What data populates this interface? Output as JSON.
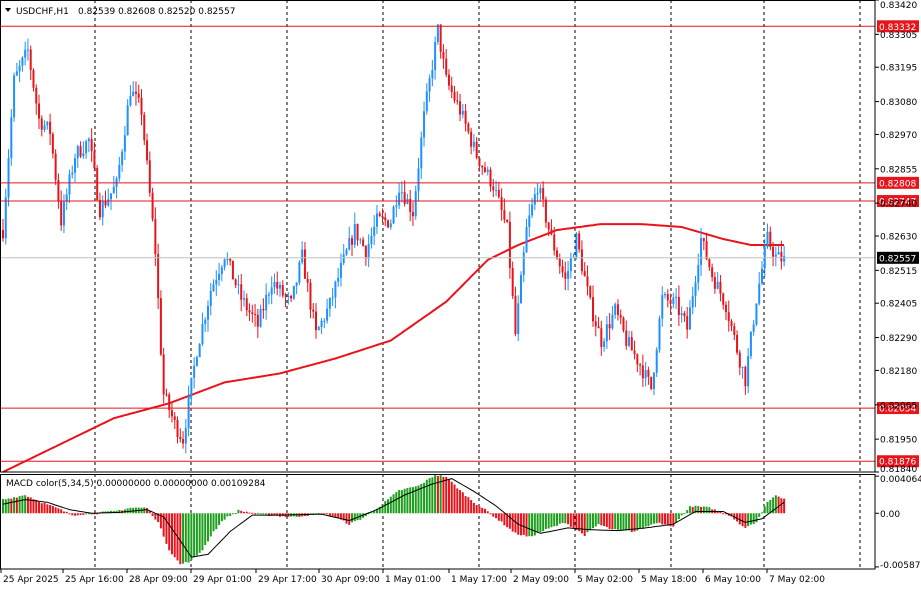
{
  "header": {
    "symbol": "USDCHF,H1",
    "ohlc": "0.82539 0.82608 0.82520 0.82557",
    "macd_label": "MACD color(5,34,5) 0.00000000 0.00000000 0.00109284"
  },
  "colors": {
    "bull": "#1E90FF",
    "bear": "#E8141B",
    "ma": "#E8141B",
    "level_line": "#E8141B",
    "grid": "#000000",
    "macd_up": "#1E9E1E",
    "macd_down": "#E8141B",
    "signal": "#000000",
    "price_tag": "#000000",
    "level_tag": "#E8141B"
  },
  "chart_data": {
    "type": "candlestick",
    "symbol": "USDCHF",
    "timeframe": "H1",
    "price_axis_ticks": [
      "0.83420",
      "0.83305",
      "0.83195",
      "0.83080",
      "0.82970",
      "0.82855",
      "0.82740",
      "0.82630",
      "0.82515",
      "0.82405",
      "0.82290",
      "0.82180",
      "0.82065",
      "0.81950",
      "0.81840"
    ],
    "price_range": [
      0.8184,
      0.8342
    ],
    "horizontal_levels": [
      {
        "label": "0.83332",
        "value": 0.83332
      },
      {
        "label": "0.82808",
        "value": 0.82808
      },
      {
        "label": "0.82747",
        "value": 0.82747
      },
      {
        "label": "0.82054",
        "value": 0.82054
      },
      {
        "label": "0.81876",
        "value": 0.81876
      }
    ],
    "current_price": {
      "label": "0.82557",
      "value": 0.82557
    },
    "time_labels": [
      "25 Apr 2025",
      "25 Apr 16:00",
      "28 Apr 09:00",
      "29 Apr 01:00",
      "29 Apr 17:00",
      "30 Apr 09:00",
      "1 May 01:00",
      "1 May 17:00",
      "2 May 09:00",
      "5 May 02:00",
      "5 May 18:00",
      "6 May 10:00",
      "7 May 02:00"
    ],
    "close_path": [
      [
        0,
        0.8265
      ],
      [
        4,
        0.8315
      ],
      [
        9,
        0.8325
      ],
      [
        13,
        0.8302
      ],
      [
        17,
        0.8298
      ],
      [
        21,
        0.8268
      ],
      [
        26,
        0.829
      ],
      [
        31,
        0.8295
      ],
      [
        35,
        0.8272
      ],
      [
        41,
        0.828
      ],
      [
        46,
        0.8312
      ],
      [
        50,
        0.8305
      ],
      [
        55,
        0.8258
      ],
      [
        57,
        0.8225
      ],
      [
        58,
        0.821
      ],
      [
        62,
        0.82
      ],
      [
        65,
        0.8195
      ],
      [
        70,
        0.8225
      ],
      [
        75,
        0.8245
      ],
      [
        80,
        0.8257
      ],
      [
        86,
        0.8242
      ],
      [
        92,
        0.8233
      ],
      [
        97,
        0.8248
      ],
      [
        104,
        0.824
      ],
      [
        108,
        0.8256
      ],
      [
        113,
        0.823
      ],
      [
        118,
        0.824
      ],
      [
        122,
        0.8252
      ],
      [
        127,
        0.8265
      ],
      [
        131,
        0.8258
      ],
      [
        135,
        0.8268
      ],
      [
        140,
        0.8268
      ],
      [
        143,
        0.828
      ],
      [
        148,
        0.8271
      ],
      [
        152,
        0.8303
      ],
      [
        157,
        0.8332
      ],
      [
        160,
        0.8315
      ],
      [
        165,
        0.8305
      ],
      [
        171,
        0.829
      ],
      [
        177,
        0.828
      ],
      [
        182,
        0.8265
      ],
      [
        185,
        0.823
      ],
      [
        189,
        0.8265
      ],
      [
        193,
        0.828
      ],
      [
        198,
        0.8262
      ],
      [
        203,
        0.8248
      ],
      [
        207,
        0.8262
      ],
      [
        212,
        0.824
      ],
      [
        216,
        0.8228
      ],
      [
        221,
        0.8238
      ],
      [
        225,
        0.8228
      ],
      [
        230,
        0.822
      ],
      [
        234,
        0.8212
      ],
      [
        238,
        0.8242
      ],
      [
        243,
        0.824
      ],
      [
        247,
        0.8232
      ],
      [
        252,
        0.8262
      ],
      [
        256,
        0.825
      ],
      [
        261,
        0.824
      ],
      [
        265,
        0.8225
      ],
      [
        268,
        0.8215
      ],
      [
        272,
        0.8242
      ],
      [
        276,
        0.8262
      ],
      [
        279,
        0.8256
      ],
      [
        282,
        0.8255
      ]
    ],
    "moving_average": [
      [
        0,
        0.8184
      ],
      [
        20,
        0.8193
      ],
      [
        40,
        0.8202
      ],
      [
        60,
        0.8207
      ],
      [
        80,
        0.8214
      ],
      [
        100,
        0.8217
      ],
      [
        120,
        0.8222
      ],
      [
        140,
        0.8228
      ],
      [
        160,
        0.8241
      ],
      [
        175,
        0.8255
      ],
      [
        186,
        0.826
      ],
      [
        200,
        0.8265
      ],
      [
        216,
        0.8267
      ],
      [
        230,
        0.8267
      ],
      [
        245,
        0.8266
      ],
      [
        260,
        0.8262
      ],
      [
        270,
        0.826
      ],
      [
        282,
        0.826
      ]
    ],
    "macd_axis_ticks": [
      "0.00406462",
      "0.00",
      "-0.00587032"
    ],
    "macd_range": [
      -0.0061,
      0.0043
    ],
    "macd_hist_path": [
      [
        0,
        0.0015
      ],
      [
        8,
        0.002
      ],
      [
        14,
        0.0012
      ],
      [
        20,
        0.0005
      ],
      [
        25,
        -0.0002
      ],
      [
        32,
        0.0
      ],
      [
        40,
        0.0002
      ],
      [
        46,
        0.0006
      ],
      [
        52,
        0.0006
      ],
      [
        56,
        -0.001
      ],
      [
        60,
        -0.004
      ],
      [
        64,
        -0.0056
      ],
      [
        68,
        -0.0052
      ],
      [
        72,
        -0.004
      ],
      [
        76,
        -0.002
      ],
      [
        80,
        -0.0006
      ],
      [
        85,
        0.0003
      ],
      [
        95,
        -0.0002
      ],
      [
        105,
        -0.0004
      ],
      [
        115,
        0.0
      ],
      [
        120,
        -0.0004
      ],
      [
        125,
        -0.0012
      ],
      [
        130,
        -0.0005
      ],
      [
        137,
        0.001
      ],
      [
        143,
        0.0025
      ],
      [
        150,
        0.003
      ],
      [
        156,
        0.0042
      ],
      [
        160,
        0.004
      ],
      [
        165,
        0.0025
      ],
      [
        170,
        0.0012
      ],
      [
        175,
        0.0002
      ],
      [
        180,
        -0.001
      ],
      [
        185,
        -0.0022
      ],
      [
        190,
        -0.0026
      ],
      [
        196,
        -0.0018
      ],
      [
        203,
        -0.001
      ],
      [
        210,
        -0.0024
      ],
      [
        215,
        -0.0012
      ],
      [
        220,
        -0.0018
      ],
      [
        228,
        -0.002
      ],
      [
        236,
        -0.001
      ],
      [
        242,
        -0.0014
      ],
      [
        248,
        0.0008
      ],
      [
        255,
        0.0006
      ],
      [
        262,
        -0.0002
      ],
      [
        268,
        -0.0016
      ],
      [
        272,
        -0.001
      ],
      [
        276,
        0.0012
      ],
      [
        279,
        0.002
      ],
      [
        282,
        0.0016
      ]
    ],
    "macd_signal_path": [
      [
        0,
        0.001
      ],
      [
        8,
        0.0015
      ],
      [
        16,
        0.0012
      ],
      [
        24,
        0.0004
      ],
      [
        32,
        0.0
      ],
      [
        42,
        0.0001
      ],
      [
        52,
        0.0004
      ],
      [
        58,
        -0.0004
      ],
      [
        64,
        -0.003
      ],
      [
        68,
        -0.0048
      ],
      [
        74,
        -0.0045
      ],
      [
        82,
        -0.002
      ],
      [
        90,
        -0.0002
      ],
      [
        100,
        -0.0002
      ],
      [
        115,
        -0.0001
      ],
      [
        125,
        -0.0008
      ],
      [
        135,
        0.0004
      ],
      [
        145,
        0.002
      ],
      [
        155,
        0.0032
      ],
      [
        162,
        0.0038
      ],
      [
        170,
        0.0024
      ],
      [
        178,
        0.0008
      ],
      [
        186,
        -0.0012
      ],
      [
        194,
        -0.0022
      ],
      [
        204,
        -0.0016
      ],
      [
        212,
        -0.0018
      ],
      [
        222,
        -0.0019
      ],
      [
        232,
        -0.0016
      ],
      [
        242,
        -0.0012
      ],
      [
        250,
        0.0002
      ],
      [
        260,
        0.0002
      ],
      [
        268,
        -0.001
      ],
      [
        274,
        -0.0006
      ],
      [
        282,
        0.0012
      ]
    ]
  }
}
